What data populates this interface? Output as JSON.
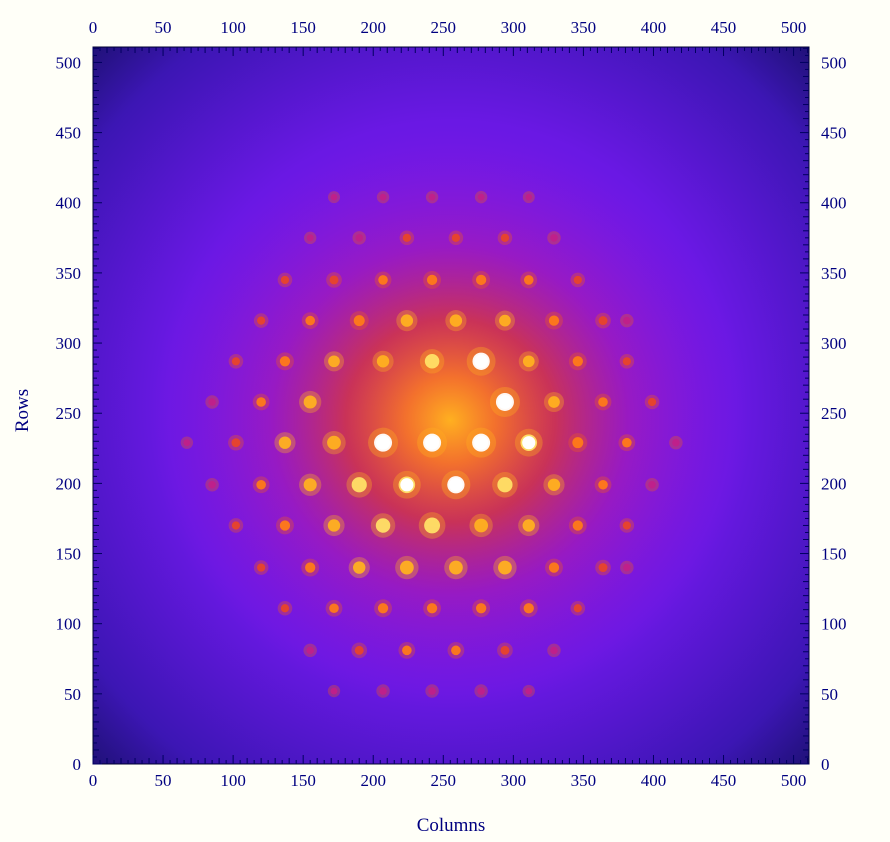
{
  "chart_data": {
    "type": "heatmap",
    "title": "",
    "xlabel": "Columns",
    "ylabel": "Rows",
    "xlim": [
      0,
      511
    ],
    "ylim": [
      0,
      511
    ],
    "x_ticks": [
      0,
      50,
      100,
      150,
      200,
      250,
      300,
      350,
      400,
      450,
      500
    ],
    "y_ticks": [
      0,
      50,
      100,
      150,
      200,
      250,
      300,
      350,
      400,
      450,
      500
    ],
    "x_ticks_also_on": "top",
    "y_ticks_also_on": "right",
    "grid": false,
    "legend": "none",
    "colormap": {
      "name": "fire",
      "stops": [
        "#0a0a55",
        "#2a1aa8",
        "#6a1ee6",
        "#a418c8",
        "#d81e5c",
        "#f04a14",
        "#ff9a0a",
        "#ffe066",
        "#ffffff"
      ]
    },
    "diffuse_center": [
      255,
      245
    ],
    "peaks": [
      {
        "x": 207,
        "y": 229,
        "v": 1.0
      },
      {
        "x": 242,
        "y": 229,
        "v": 1.0
      },
      {
        "x": 277,
        "y": 229,
        "v": 1.0
      },
      {
        "x": 294,
        "y": 258,
        "v": 1.0
      },
      {
        "x": 277,
        "y": 287,
        "v": 0.95
      },
      {
        "x": 259,
        "y": 199,
        "v": 0.95
      },
      {
        "x": 224,
        "y": 199,
        "v": 0.9
      },
      {
        "x": 311,
        "y": 229,
        "v": 0.9
      },
      {
        "x": 242,
        "y": 170,
        "v": 0.85
      },
      {
        "x": 190,
        "y": 199,
        "v": 0.8
      },
      {
        "x": 294,
        "y": 199,
        "v": 0.8
      },
      {
        "x": 207,
        "y": 170,
        "v": 0.75
      },
      {
        "x": 277,
        "y": 170,
        "v": 0.7
      },
      {
        "x": 172,
        "y": 229,
        "v": 0.7
      },
      {
        "x": 242,
        "y": 287,
        "v": 0.75
      },
      {
        "x": 294,
        "y": 140,
        "v": 0.7
      },
      {
        "x": 259,
        "y": 140,
        "v": 0.7
      },
      {
        "x": 224,
        "y": 140,
        "v": 0.7
      },
      {
        "x": 155,
        "y": 199,
        "v": 0.65
      },
      {
        "x": 155,
        "y": 258,
        "v": 0.65
      },
      {
        "x": 137,
        "y": 229,
        "v": 0.6
      },
      {
        "x": 190,
        "y": 140,
        "v": 0.6
      },
      {
        "x": 329,
        "y": 199,
        "v": 0.6
      },
      {
        "x": 311,
        "y": 170,
        "v": 0.6
      },
      {
        "x": 172,
        "y": 170,
        "v": 0.6
      },
      {
        "x": 329,
        "y": 258,
        "v": 0.55
      },
      {
        "x": 311,
        "y": 287,
        "v": 0.55
      },
      {
        "x": 172,
        "y": 287,
        "v": 0.55
      },
      {
        "x": 207,
        "y": 287,
        "v": 0.6
      },
      {
        "x": 224,
        "y": 316,
        "v": 0.6
      },
      {
        "x": 259,
        "y": 316,
        "v": 0.6
      },
      {
        "x": 294,
        "y": 316,
        "v": 0.55
      },
      {
        "x": 190,
        "y": 316,
        "v": 0.5
      },
      {
        "x": 329,
        "y": 316,
        "v": 0.45
      },
      {
        "x": 242,
        "y": 345,
        "v": 0.45
      },
      {
        "x": 277,
        "y": 345,
        "v": 0.45
      },
      {
        "x": 311,
        "y": 345,
        "v": 0.4
      },
      {
        "x": 207,
        "y": 345,
        "v": 0.4
      },
      {
        "x": 172,
        "y": 345,
        "v": 0.35
      },
      {
        "x": 346,
        "y": 229,
        "v": 0.5
      },
      {
        "x": 346,
        "y": 170,
        "v": 0.45
      },
      {
        "x": 346,
        "y": 287,
        "v": 0.45
      },
      {
        "x": 364,
        "y": 258,
        "v": 0.4
      },
      {
        "x": 364,
        "y": 199,
        "v": 0.4
      },
      {
        "x": 381,
        "y": 229,
        "v": 0.4
      },
      {
        "x": 120,
        "y": 258,
        "v": 0.4
      },
      {
        "x": 120,
        "y": 199,
        "v": 0.4
      },
      {
        "x": 102,
        "y": 229,
        "v": 0.35
      },
      {
        "x": 137,
        "y": 287,
        "v": 0.45
      },
      {
        "x": 137,
        "y": 170,
        "v": 0.45
      },
      {
        "x": 155,
        "y": 140,
        "v": 0.45
      },
      {
        "x": 155,
        "y": 316,
        "v": 0.4
      },
      {
        "x": 329,
        "y": 140,
        "v": 0.45
      },
      {
        "x": 364,
        "y": 316,
        "v": 0.35
      },
      {
        "x": 364,
        "y": 140,
        "v": 0.35
      },
      {
        "x": 172,
        "y": 111,
        "v": 0.4
      },
      {
        "x": 207,
        "y": 111,
        "v": 0.45
      },
      {
        "x": 242,
        "y": 111,
        "v": 0.45
      },
      {
        "x": 277,
        "y": 111,
        "v": 0.45
      },
      {
        "x": 311,
        "y": 111,
        "v": 0.45
      },
      {
        "x": 190,
        "y": 81,
        "v": 0.35
      },
      {
        "x": 224,
        "y": 81,
        "v": 0.4
      },
      {
        "x": 259,
        "y": 81,
        "v": 0.4
      },
      {
        "x": 294,
        "y": 81,
        "v": 0.35
      },
      {
        "x": 224,
        "y": 375,
        "v": 0.3
      },
      {
        "x": 259,
        "y": 375,
        "v": 0.3
      },
      {
        "x": 294,
        "y": 375,
        "v": 0.3
      },
      {
        "x": 190,
        "y": 375,
        "v": 0.25
      },
      {
        "x": 329,
        "y": 375,
        "v": 0.25
      },
      {
        "x": 399,
        "y": 258,
        "v": 0.3
      },
      {
        "x": 399,
        "y": 199,
        "v": 0.25
      },
      {
        "x": 85,
        "y": 258,
        "v": 0.25
      },
      {
        "x": 85,
        "y": 199,
        "v": 0.25
      },
      {
        "x": 381,
        "y": 287,
        "v": 0.3
      },
      {
        "x": 381,
        "y": 170,
        "v": 0.3
      },
      {
        "x": 102,
        "y": 287,
        "v": 0.3
      },
      {
        "x": 102,
        "y": 170,
        "v": 0.3
      },
      {
        "x": 120,
        "y": 140,
        "v": 0.3
      },
      {
        "x": 120,
        "y": 316,
        "v": 0.3
      },
      {
        "x": 137,
        "y": 111,
        "v": 0.3
      },
      {
        "x": 137,
        "y": 345,
        "v": 0.3
      },
      {
        "x": 346,
        "y": 111,
        "v": 0.3
      },
      {
        "x": 346,
        "y": 345,
        "v": 0.3
      },
      {
        "x": 381,
        "y": 140,
        "v": 0.25
      },
      {
        "x": 381,
        "y": 316,
        "v": 0.25
      },
      {
        "x": 416,
        "y": 229,
        "v": 0.25
      },
      {
        "x": 67,
        "y": 229,
        "v": 0.2
      },
      {
        "x": 172,
        "y": 52,
        "v": 0.2
      },
      {
        "x": 207,
        "y": 52,
        "v": 0.25
      },
      {
        "x": 242,
        "y": 52,
        "v": 0.25
      },
      {
        "x": 277,
        "y": 52,
        "v": 0.25
      },
      {
        "x": 311,
        "y": 52,
        "v": 0.2
      },
      {
        "x": 155,
        "y": 81,
        "v": 0.25
      },
      {
        "x": 329,
        "y": 81,
        "v": 0.25
      },
      {
        "x": 155,
        "y": 375,
        "v": 0.2
      },
      {
        "x": 207,
        "y": 404,
        "v": 0.2
      },
      {
        "x": 242,
        "y": 404,
        "v": 0.2
      },
      {
        "x": 277,
        "y": 404,
        "v": 0.2
      },
      {
        "x": 311,
        "y": 404,
        "v": 0.18
      },
      {
        "x": 172,
        "y": 404,
        "v": 0.18
      }
    ]
  }
}
